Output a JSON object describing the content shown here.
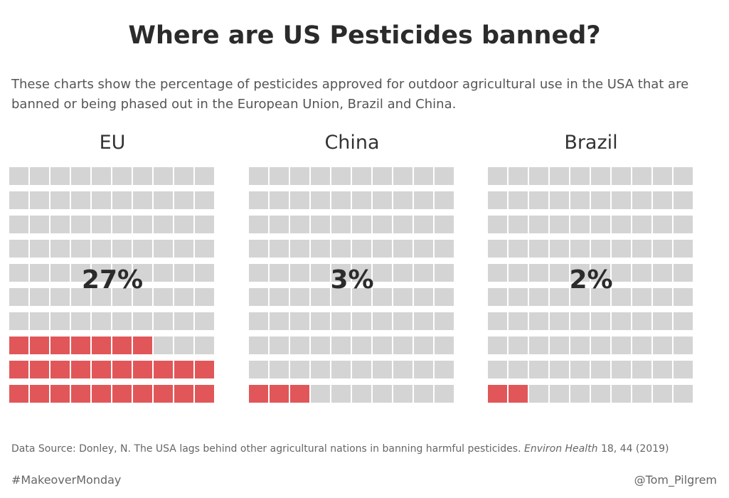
{
  "title": "Where are US Pesticides banned?",
  "subtitle": "These charts show the percentage of pesticides approved for outdoor agricultural use in the USA that are banned or being phased out in the European Union, Brazil and China.",
  "chart_data": [
    {
      "type": "waffle",
      "title": "EU",
      "value_label": "27%",
      "value": 27,
      "total": 100,
      "grid": {
        "rows": 10,
        "cols": 10
      },
      "colors": {
        "filled": "#e15759",
        "empty": "#d4d4d4"
      }
    },
    {
      "type": "waffle",
      "title": "China",
      "value_label": "3%",
      "value": 3,
      "total": 100,
      "grid": {
        "rows": 10,
        "cols": 10
      },
      "colors": {
        "filled": "#e15759",
        "empty": "#d4d4d4"
      }
    },
    {
      "type": "waffle",
      "title": "Brazil",
      "value_label": "2%",
      "value": 2,
      "total": 100,
      "grid": {
        "rows": 10,
        "cols": 10
      },
      "colors": {
        "filled": "#e15759",
        "empty": "#d4d4d4"
      }
    }
  ],
  "source": {
    "prefix": "Data Source: Donley, N. The USA lags behind other agricultural nations in banning harmful pesticides.",
    "journal": "Environ Health",
    "suffix": "18, 44 (2019)"
  },
  "footer": {
    "hashtag": "#MakeoverMonday",
    "author": "@Tom_Pilgrem"
  }
}
